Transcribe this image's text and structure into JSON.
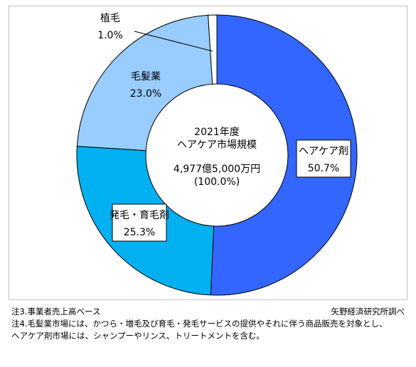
{
  "chart_data": {
    "type": "pie",
    "variant": "donut",
    "center_text": {
      "line1": "2021年度",
      "line2": "ヘアケア市場規模",
      "line3": "4,977億5,000万円",
      "line4": "(100.0%)"
    },
    "slices": [
      {
        "label": "ヘアケア剤",
        "value": 50.7,
        "value_label": "50.7%",
        "color": "#3366ff"
      },
      {
        "label": "発毛・育毛剤",
        "value": 25.3,
        "value_label": "25.3%",
        "color": "#00b0f0"
      },
      {
        "label": "毛髪業",
        "value": 23.0,
        "value_label": "23.0%",
        "color": "#99ccff"
      },
      {
        "label": "植毛",
        "value": 1.0,
        "value_label": "1.0%",
        "color": "#ffffff"
      }
    ],
    "legend": "none"
  },
  "notes": {
    "note3": "注3.事業者売上高ベース",
    "source": "矢野経済研究所調べ",
    "note4_line1": "注4.毛髪業市場には、かつら・増毛及び育毛・発毛サービスの提供やそれに伴う商品販売を対象とし、",
    "note4_line2": "ヘアケア剤市場には、シャンプーやリンス、トリートメントを含む。"
  }
}
